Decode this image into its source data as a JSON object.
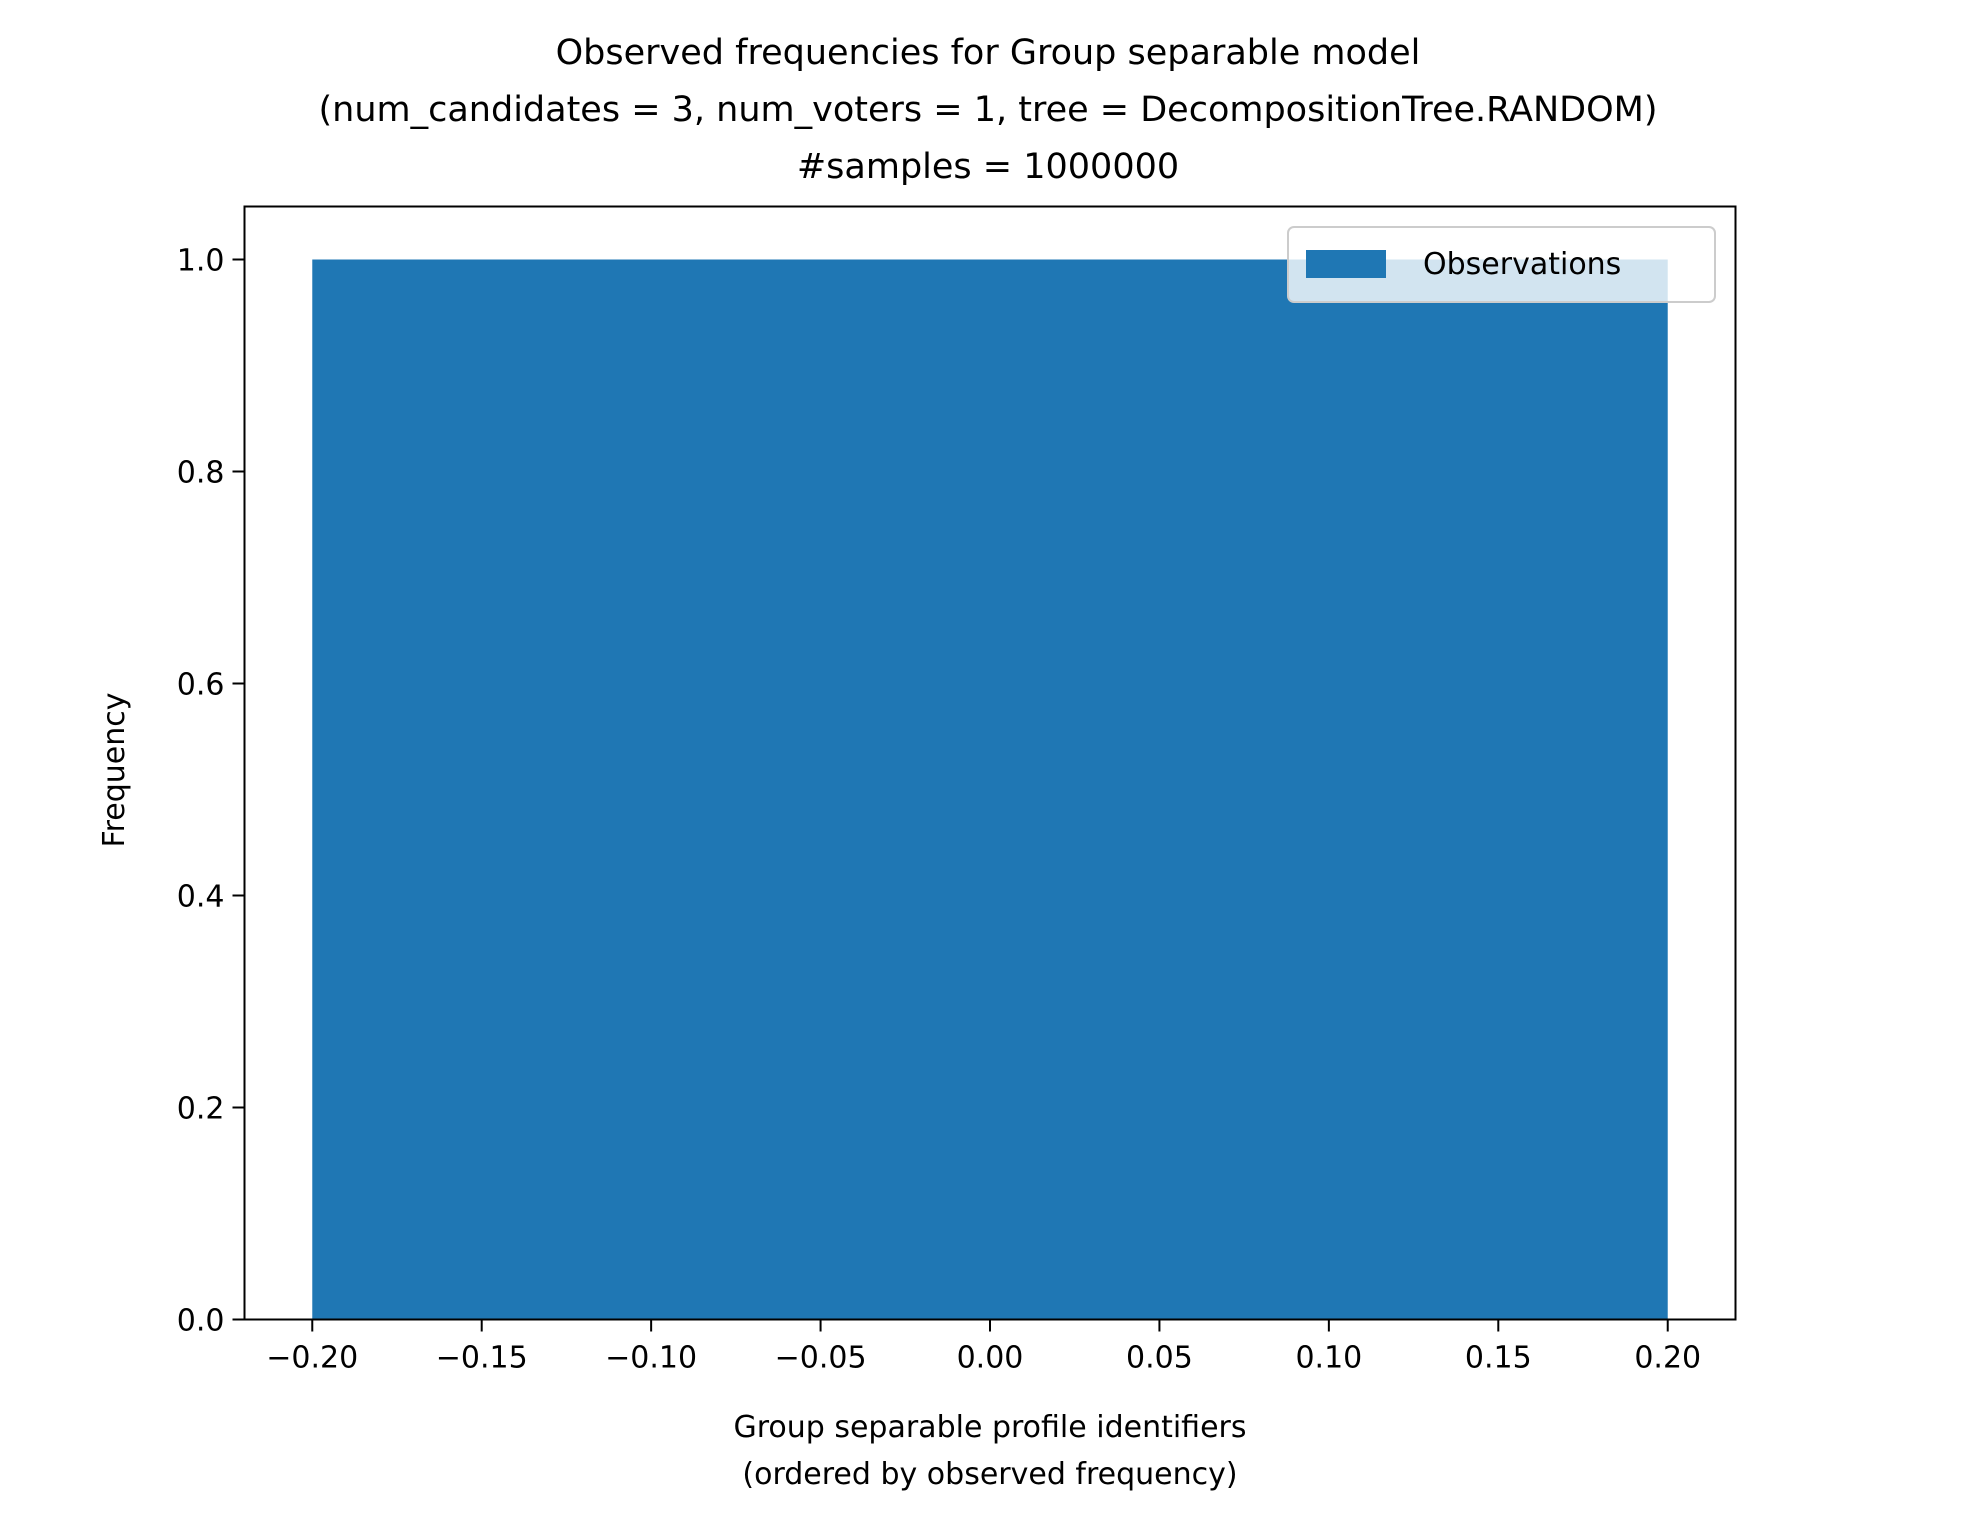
{
  "chart_data": {
    "type": "bar",
    "title": [
      "Observed frequencies for Group separable model",
      "(num_candidates = 3, num_voters = 1, tree = DecompositionTree.RANDOM)",
      "#samples = 1000000"
    ],
    "xlabel": [
      "Group separable profile identifiers",
      "(ordered by observed frequency)"
    ],
    "ylabel": "Frequency",
    "series": [
      {
        "name": "Observations",
        "color": "#1f77b4",
        "bars": [
          {
            "x": 0,
            "width": 0.4,
            "value": 1.0
          }
        ]
      }
    ],
    "xlim": [
      -0.22,
      0.22
    ],
    "ylim": [
      0,
      1.05
    ],
    "xticks": [
      -0.2,
      -0.15,
      -0.1,
      -0.05,
      0.0,
      0.05,
      0.1,
      0.15,
      0.2
    ],
    "xtick_labels": [
      "−0.20",
      "−0.15",
      "−0.10",
      "−0.05",
      "0.00",
      "0.05",
      "0.10",
      "0.15",
      "0.20"
    ],
    "yticks": [
      0.0,
      0.2,
      0.4,
      0.6,
      0.8,
      1.0
    ],
    "ytick_labels": [
      "0.0",
      "0.2",
      "0.4",
      "0.6",
      "0.8",
      "1.0"
    ],
    "grid": false,
    "legend": {
      "position": "top-right",
      "entries": [
        "Observations"
      ]
    }
  }
}
